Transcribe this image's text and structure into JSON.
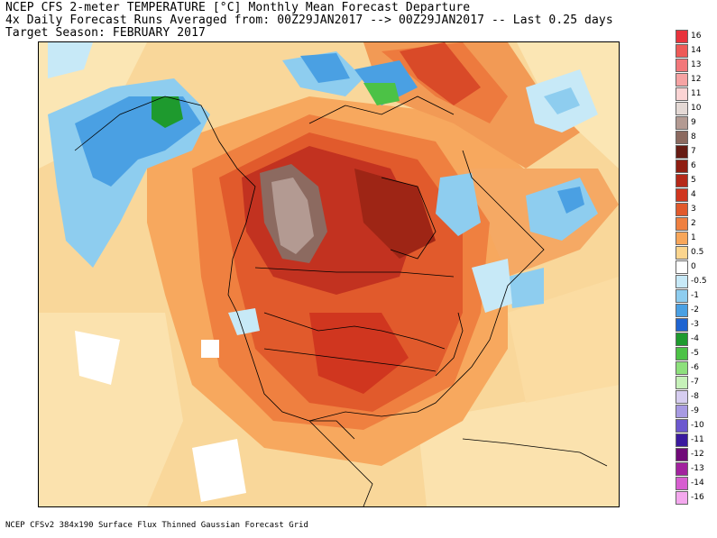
{
  "header": {
    "line1": "NCEP CFS 2-meter TEMPERATURE [°C] Monthly Mean Forecast Departure",
    "line2": "4x Daily Forecast Runs Averaged from: 00Z29JAN2017 --> 00Z29JAN2017 -- Last 0.25 days",
    "line3": "Target Season: FEBRUARY 2017"
  },
  "footer": "NCEP CFSv2 384x190 Surface Flux Thinned Gaussian Forecast Grid",
  "legend": {
    "items": [
      {
        "label": "16",
        "color": "#e8333c"
      },
      {
        "label": "14",
        "color": "#ee5a57"
      },
      {
        "label": "13",
        "color": "#f2777a"
      },
      {
        "label": "12",
        "color": "#f6a3a3"
      },
      {
        "label": "11",
        "color": "#fbd4d4"
      },
      {
        "label": "10",
        "color": "#e4d9d5"
      },
      {
        "label": "9",
        "color": "#b39a92"
      },
      {
        "label": "8",
        "color": "#8c6a60"
      },
      {
        "label": "7",
        "color": "#661b13"
      },
      {
        "label": "6",
        "color": "#8f1e12"
      },
      {
        "label": "5",
        "color": "#b52818"
      },
      {
        "label": "4",
        "color": "#d0361f"
      },
      {
        "label": "3",
        "color": "#e15a2c"
      },
      {
        "label": "2",
        "color": "#ef8040"
      },
      {
        "label": "1",
        "color": "#f7a65a"
      },
      {
        "label": "0.5",
        "color": "#fbd58e"
      },
      {
        "label": "0",
        "color": "#ffffff"
      },
      {
        "label": "-0.5",
        "color": "#c7e9f7"
      },
      {
        "label": "-1",
        "color": "#8ecdef"
      },
      {
        "label": "-2",
        "color": "#4aa0e3"
      },
      {
        "label": "-3",
        "color": "#1f64d1"
      },
      {
        "label": "-4",
        "color": "#1e9a2e"
      },
      {
        "label": "-5",
        "color": "#4cc246"
      },
      {
        "label": "-6",
        "color": "#8de07c"
      },
      {
        "label": "-7",
        "color": "#c6f1b9"
      },
      {
        "label": "-8",
        "color": "#d6cdf0"
      },
      {
        "label": "-9",
        "color": "#a79ae2"
      },
      {
        "label": "-10",
        "color": "#6c58cf"
      },
      {
        "label": "-11",
        "color": "#3a1a9e"
      },
      {
        "label": "-12",
        "color": "#700a78"
      },
      {
        "label": "-13",
        "color": "#a2229e"
      },
      {
        "label": "-14",
        "color": "#d75ed0"
      },
      {
        "label": "-16",
        "color": "#f4a8ee"
      }
    ]
  }
}
